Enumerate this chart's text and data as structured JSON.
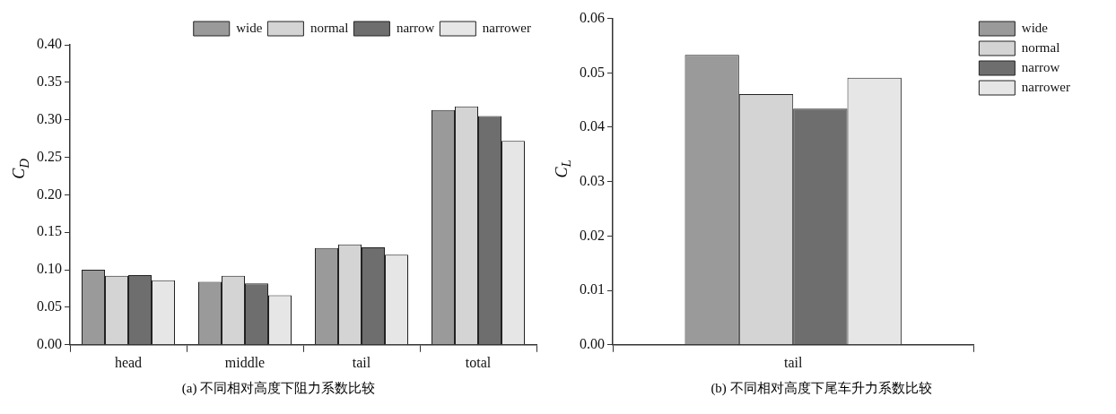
{
  "chart_data": [
    {
      "type": "bar",
      "title": "(a) 不同相对高度下阻力系数比较",
      "ylabel": "C$_{D}$",
      "categories": [
        "head",
        "middle",
        "tail",
        "total"
      ],
      "series": [
        {
          "name": "wide",
          "color": "#9a9a9a",
          "values": [
            0.1,
            0.084,
            0.129,
            0.313
          ]
        },
        {
          "name": "normal",
          "color": "#d4d4d4",
          "values": [
            0.092,
            0.092,
            0.134,
            0.318
          ]
        },
        {
          "name": "narrow",
          "color": "#6e6e6e",
          "values": [
            0.093,
            0.082,
            0.13,
            0.305
          ]
        },
        {
          "name": "narrower",
          "color": "#e6e6e6",
          "values": [
            0.086,
            0.066,
            0.12,
            0.272
          ]
        }
      ],
      "ylim": [
        0,
        0.4
      ],
      "yticks": [
        {
          "value": 0,
          "label": "0.00"
        },
        0.05,
        {
          "value": 0.1,
          "label": "0.10"
        },
        0.15,
        {
          "value": 0.2,
          "label": "0.20"
        },
        0.25,
        {
          "value": 0.3,
          "label": "0.30"
        },
        0.35,
        {
          "value": 0.4,
          "label": "0.40"
        }
      ],
      "legend": "top right"
    },
    {
      "type": "bar",
      "title": "(b) 不同相对高度下尾车升力系数比较",
      "ylabel": "C$_{L}$",
      "categories": [
        "tail"
      ],
      "series": [
        {
          "name": "wide",
          "color": "#9a9a9a",
          "values": [
            0.0533
          ]
        },
        {
          "name": "normal",
          "color": "#d4d4d4",
          "values": [
            0.0461
          ]
        },
        {
          "name": "narrow",
          "color": "#6e6e6e",
          "values": [
            0.0434
          ]
        },
        {
          "name": "narrower",
          "color": "#e6e6e6",
          "values": [
            0.0491
          ]
        }
      ],
      "ylim": [
        0,
        0.06
      ],
      "yticks": [
        {
          "value": 0,
          "label": "0.00"
        },
        0.01,
        0.02,
        0.03,
        0.04,
        0.05,
        0.06
      ],
      "legend": "right"
    }
  ]
}
